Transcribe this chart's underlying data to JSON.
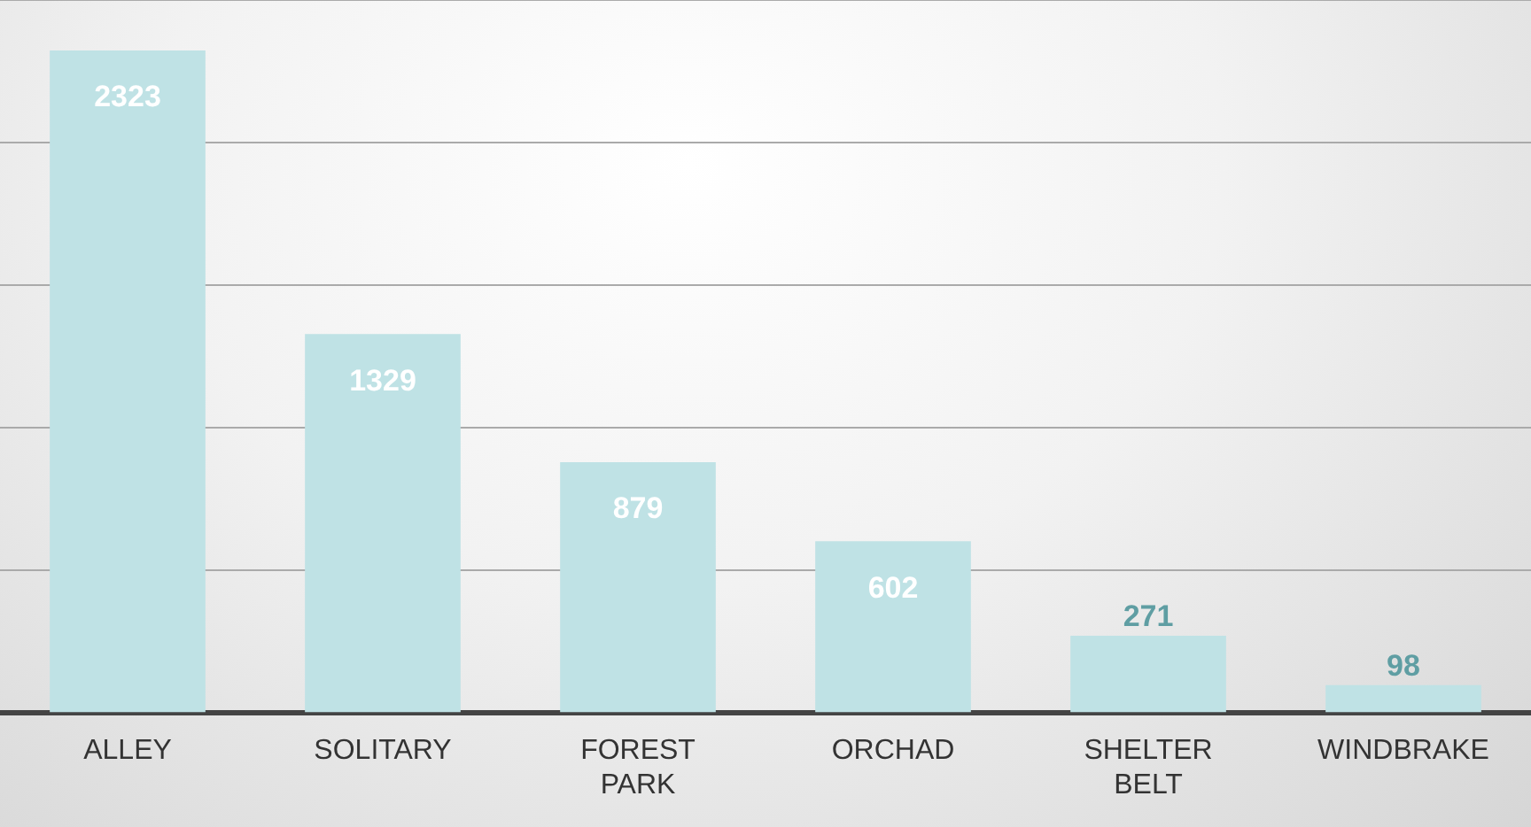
{
  "chart_data": {
    "type": "bar",
    "categories": [
      "ALLEY",
      "SOLITARY",
      "FOREST PARK",
      "ORCHAD",
      "SHELTER BELT",
      "WINDBRAKE"
    ],
    "values": [
      2323,
      1329,
      879,
      602,
      271,
      98
    ],
    "color": "#bfe2e5",
    "data_labels": true,
    "grid": "y",
    "legend": false,
    "tick_labels": "x"
  }
}
